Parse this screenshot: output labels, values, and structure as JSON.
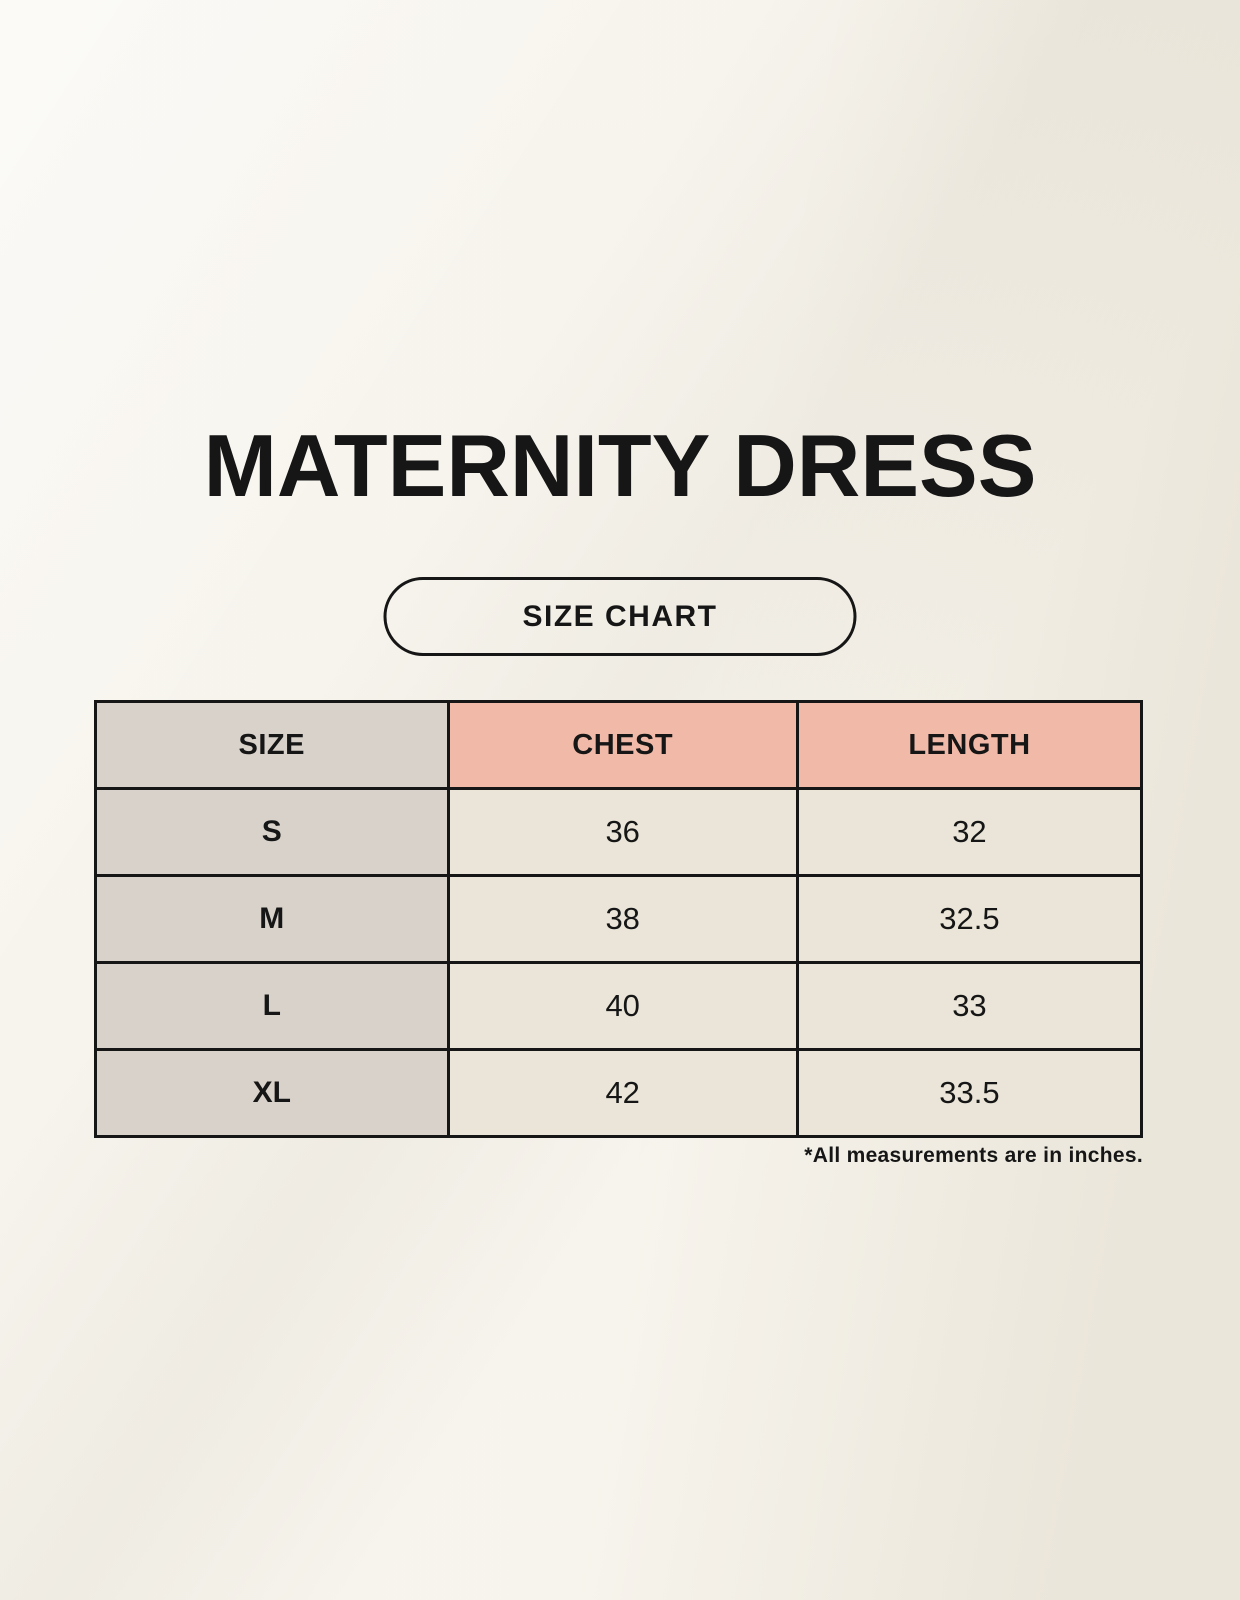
{
  "header": {
    "title": "MATERNITY DRESS",
    "badge_label": "SIZE CHART"
  },
  "chart_data": {
    "type": "table",
    "title": "MATERNITY DRESS",
    "subtitle": "SIZE CHART",
    "columns": [
      "SIZE",
      "CHEST",
      "LENGTH"
    ],
    "rows": [
      [
        "S",
        "36",
        "32"
      ],
      [
        "M",
        "38",
        "32.5"
      ],
      [
        "L",
        "40",
        "33"
      ],
      [
        "XL",
        "42",
        "33.5"
      ]
    ],
    "units": "inches",
    "footnote": "*All measurements are in inches."
  },
  "colors": {
    "background": "#F4F0E6",
    "cell_bg": "#EAE5D8",
    "size_col_bg": "#D9D2CA",
    "accent_pink": "#F1B9A8",
    "border": "#161616",
    "text": "#161616"
  }
}
